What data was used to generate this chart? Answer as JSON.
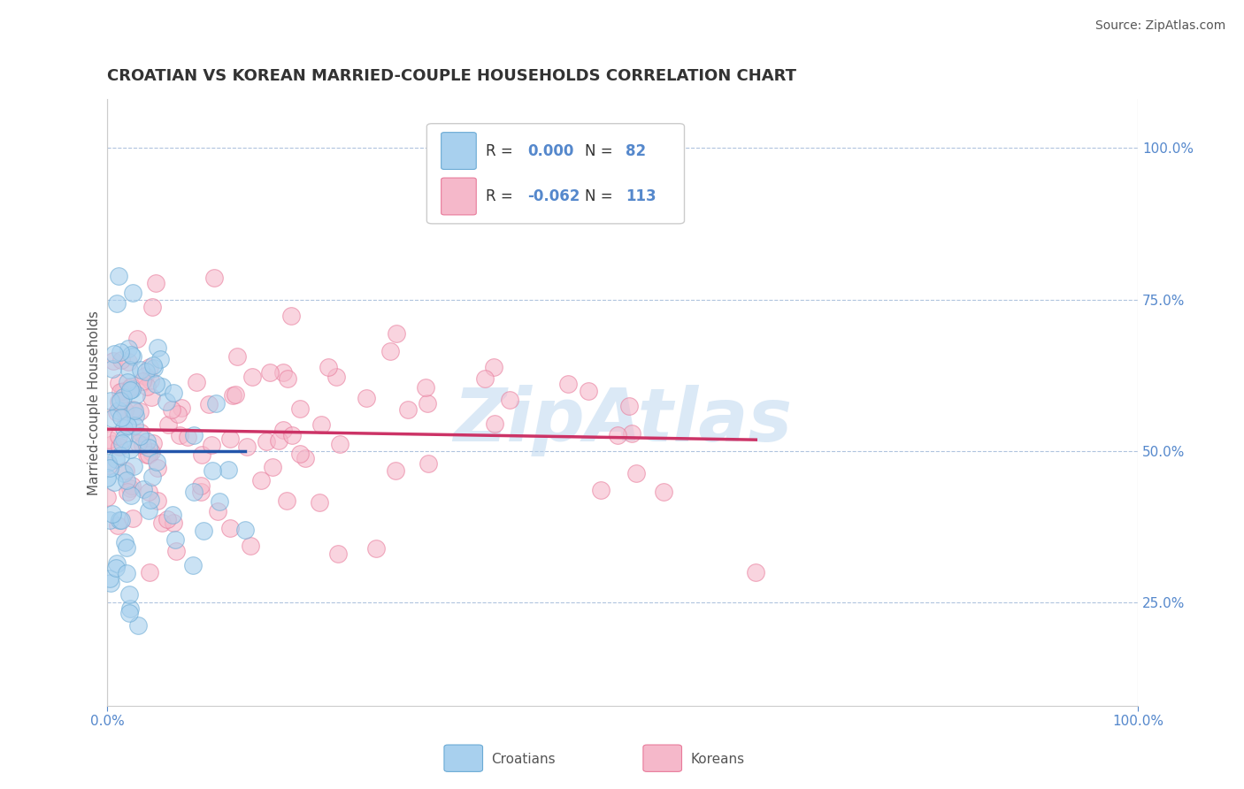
{
  "title": "CROATIAN VS KOREAN MARRIED-COUPLE HOUSEHOLDS CORRELATION CHART",
  "source": "Source: ZipAtlas.com",
  "ylabel": "Married-couple Households",
  "xlim": [
    0.0,
    100.0
  ],
  "ylim": [
    8.0,
    108.0
  ],
  "ytick_vals": [
    25,
    50,
    75,
    100
  ],
  "ytick_labels": [
    "25.0%",
    "50.0%",
    "75.0%",
    "100.0%"
  ],
  "xtick_vals": [
    0,
    100
  ],
  "xtick_labels": [
    "0.0%",
    "100.0%"
  ],
  "croatian_color": "#a8d0ee",
  "croatian_edge": "#6aaad4",
  "korean_color": "#f5b8ca",
  "korean_edge": "#e87a9a",
  "croatian_trend_color": "#2255aa",
  "korean_trend_color": "#cc3366",
  "watermark": "ZipAtlas",
  "background_color": "#ffffff",
  "grid_color": "#b0c4de",
  "tick_color": "#5588cc",
  "title_fontsize": 13,
  "source_fontsize": 10,
  "legend_fontsize": 12,
  "dot_size": 200,
  "alpha": 0.6
}
